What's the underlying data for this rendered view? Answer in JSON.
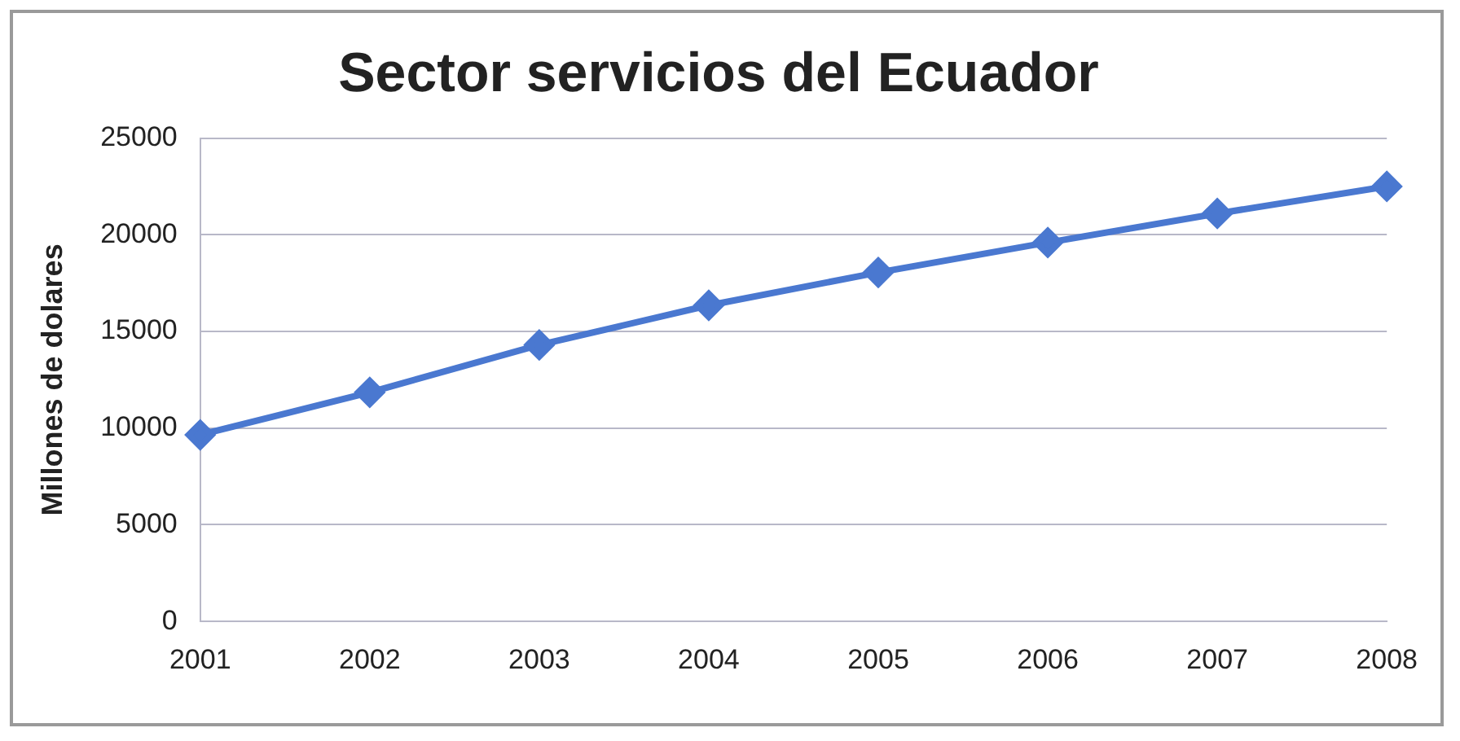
{
  "chart_data": {
    "type": "line",
    "title": "Sector servicios del Ecuador",
    "ylabel": "Millones de dolares",
    "categories": [
      "2001",
      "2002",
      "2003",
      "2004",
      "2005",
      "2006",
      "2007",
      "2008"
    ],
    "series": [
      {
        "color": "#4a78d0",
        "values": [
          9650,
          11850,
          14300,
          16350,
          18050,
          19600,
          21100,
          22500
        ]
      }
    ],
    "ylim": [
      0,
      25000
    ],
    "yticks": [
      0,
      5000,
      10000,
      15000,
      20000,
      25000
    ],
    "grid": "y",
    "legend": false,
    "marker": "diamond",
    "line_style": "solid"
  }
}
